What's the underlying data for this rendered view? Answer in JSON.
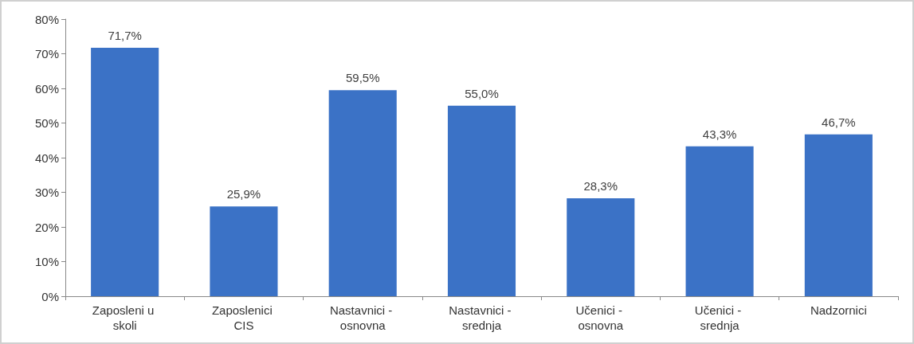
{
  "chart_data": {
    "type": "bar",
    "categories": [
      "Zaposleni u skoli",
      "Zaposlenici CIS",
      "Nastavnici - osnovna",
      "Nastavnici - srednja",
      "Učenici - osnovna",
      "Učenici - srednja",
      "Nadzornici"
    ],
    "values": [
      71.7,
      25.9,
      59.5,
      55.0,
      28.3,
      43.3,
      46.7
    ],
    "value_labels": [
      "71,7%",
      "25,9%",
      "59,5%",
      "55,0%",
      "28,3%",
      "43,3%",
      "46,7%"
    ],
    "color": "#3b72c6",
    "ylim": [
      0,
      80
    ],
    "yticks": [
      {
        "value": 0,
        "label": "0%"
      },
      {
        "value": 10,
        "label": "10%"
      },
      {
        "value": 20,
        "label": "20%"
      },
      {
        "value": 30,
        "label": "30%"
      },
      {
        "value": 40,
        "label": "40%"
      },
      {
        "value": 50,
        "label": "50%"
      },
      {
        "value": 60,
        "label": "60%"
      },
      {
        "value": 70,
        "label": "70%"
      },
      {
        "value": 80,
        "label": "80%"
      }
    ],
    "grid": false
  }
}
